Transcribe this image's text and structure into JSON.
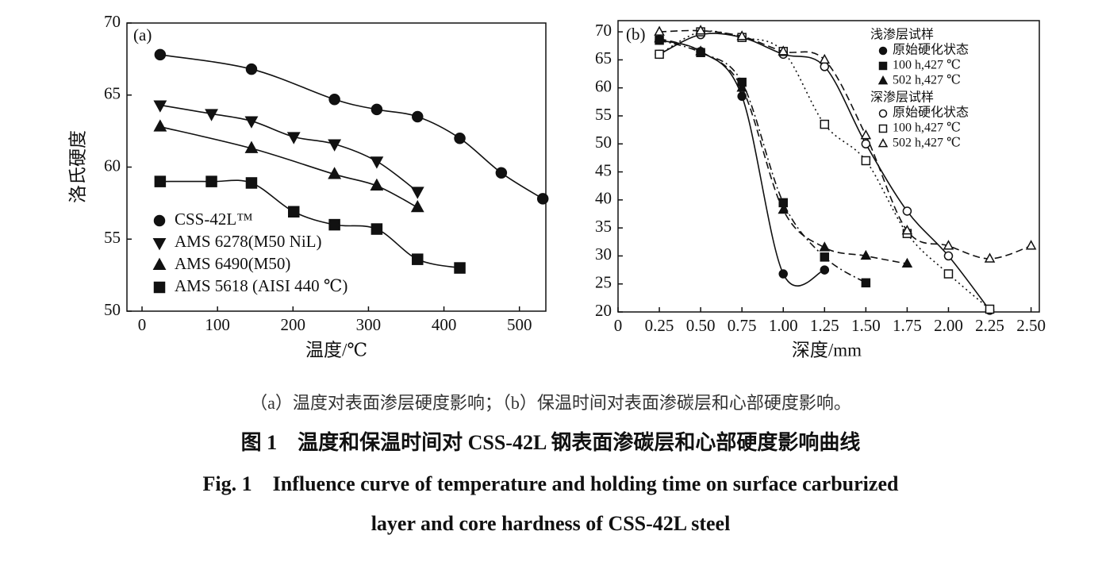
{
  "chart_data": [
    {
      "type": "line",
      "panel_label": "(a)",
      "y_label": "洛氏硬度",
      "x_label": "温度/℃",
      "xlim": [
        -20,
        535
      ],
      "ylim": [
        50,
        70
      ],
      "xticks": [
        0,
        100,
        200,
        300,
        400,
        500
      ],
      "yticks": [
        50,
        55,
        60,
        65,
        70
      ],
      "series": [
        {
          "name": "CSS-42L™",
          "color": "#111111",
          "marker": "circle",
          "filled": true,
          "dash": "solid",
          "x": [
            24,
            145,
            255,
            311,
            365,
            421,
            476,
            531
          ],
          "values": [
            67.8,
            66.8,
            64.7,
            64.0,
            63.5,
            62.0,
            59.6,
            57.8
          ]
        },
        {
          "name": "AMS 6278(M50 NiL)",
          "color": "#111111",
          "marker": "triangle-down",
          "filled": true,
          "dash": "solid",
          "x": [
            24,
            92,
            145,
            201,
            255,
            311,
            365
          ],
          "values": [
            64.3,
            63.7,
            63.2,
            62.1,
            61.6,
            60.4,
            58.3
          ]
        },
        {
          "name": "AMS 6490(M50)",
          "color": "#111111",
          "marker": "triangle-up",
          "filled": true,
          "dash": "solid",
          "x": [
            24,
            145,
            255,
            311,
            365
          ],
          "values": [
            62.8,
            61.3,
            59.5,
            58.7,
            57.2
          ]
        },
        {
          "name": "AMS 5618 (AISI 440 ℃)",
          "color": "#111111",
          "marker": "square",
          "filled": true,
          "dash": "solid",
          "x": [
            24,
            92,
            145,
            201,
            255,
            311,
            365,
            421
          ],
          "values": [
            59.0,
            59.0,
            58.9,
            56.9,
            56.0,
            55.7,
            53.6,
            53.0
          ]
        }
      ]
    },
    {
      "type": "line",
      "panel_label": "(b)",
      "x_label": "深度/mm",
      "xlim": [
        0,
        2.55
      ],
      "ylim": [
        20,
        72
      ],
      "xticks": [
        0,
        0.25,
        {
          "value": 0.5,
          "label": "0.50"
        },
        0.75,
        {
          "value": 1,
          "label": "1.00"
        },
        1.25,
        {
          "value": 1.5,
          "label": "1.50"
        },
        1.75,
        {
          "value": 2,
          "label": "2.00"
        },
        2.25,
        {
          "value": 2.5,
          "label": "2.50"
        }
      ],
      "yticks": [
        20,
        25,
        30,
        35,
        40,
        45,
        50,
        55,
        60,
        65,
        70
      ],
      "legend_titles": [
        "浅渗层试样",
        "深渗层试样"
      ],
      "series": [
        {
          "name": "原始硬化状态",
          "group": 0,
          "color": "#111111",
          "marker": "circle",
          "filled": true,
          "dash": "solid",
          "x": [
            0.25,
            0.5,
            0.75,
            1.0,
            1.25
          ],
          "values": [
            68.5,
            66.5,
            58.5,
            26.8,
            27.5
          ]
        },
        {
          "name": "100 h,427 ℃",
          "group": 0,
          "color": "#111111",
          "marker": "square",
          "filled": true,
          "dash": "dashdot",
          "x": [
            0.25,
            0.5,
            0.75,
            1.0,
            1.25,
            1.5
          ],
          "values": [
            68.5,
            66.3,
            61.0,
            39.5,
            29.8,
            25.2
          ]
        },
        {
          "name": "502 h,427 ℃",
          "group": 0,
          "color": "#111111",
          "marker": "triangle-up",
          "filled": true,
          "dash": "dashed",
          "x": [
            0.25,
            0.5,
            0.75,
            1.0,
            1.25,
            1.5,
            1.75
          ],
          "values": [
            68.8,
            66.5,
            60.0,
            38.2,
            31.5,
            30.0,
            28.6
          ]
        },
        {
          "name": "原始硬化状态",
          "group": 1,
          "color": "#111111",
          "marker": "circle",
          "filled": false,
          "dash": "solid",
          "x": [
            0.25,
            0.5,
            0.75,
            1.0,
            1.25,
            1.5,
            1.75,
            2.0,
            2.25
          ],
          "values": [
            66.0,
            69.5,
            69.0,
            66.0,
            63.8,
            50.0,
            38.0,
            30.0,
            20.3
          ]
        },
        {
          "name": "100 h,427 ℃",
          "group": 1,
          "color": "#111111",
          "marker": "square",
          "filled": false,
          "dash": "dotted",
          "x": [
            0.25,
            0.5,
            0.75,
            1.0,
            1.25,
            1.5,
            1.75,
            2.0,
            2.25
          ],
          "values": [
            66.0,
            70.0,
            69.0,
            66.5,
            53.5,
            47.0,
            34.0,
            26.8,
            20.5
          ]
        },
        {
          "name": "502 h,427 ℃",
          "group": 1,
          "color": "#111111",
          "marker": "triangle-up",
          "filled": false,
          "dash": "dashed",
          "x": [
            0.25,
            0.5,
            0.75,
            1.0,
            1.25,
            1.5,
            1.75,
            2.0,
            2.25,
            2.5
          ],
          "values": [
            70.0,
            70.2,
            69.2,
            66.5,
            65.0,
            51.5,
            34.5,
            31.8,
            29.5,
            31.8
          ]
        }
      ]
    }
  ],
  "captions": {
    "sub": "（a）温度对表面渗层硬度影响；（b）保温时间对表面渗碳层和心部硬度影响。",
    "cn": "图 1　温度和保温时间对 CSS-42L 钢表面渗碳层和心部硬度影响曲线",
    "en": [
      "Fig. 1　Influence curve of temperature and holding time on surface carburized",
      "layer and core hardness of CSS-42L steel"
    ]
  }
}
